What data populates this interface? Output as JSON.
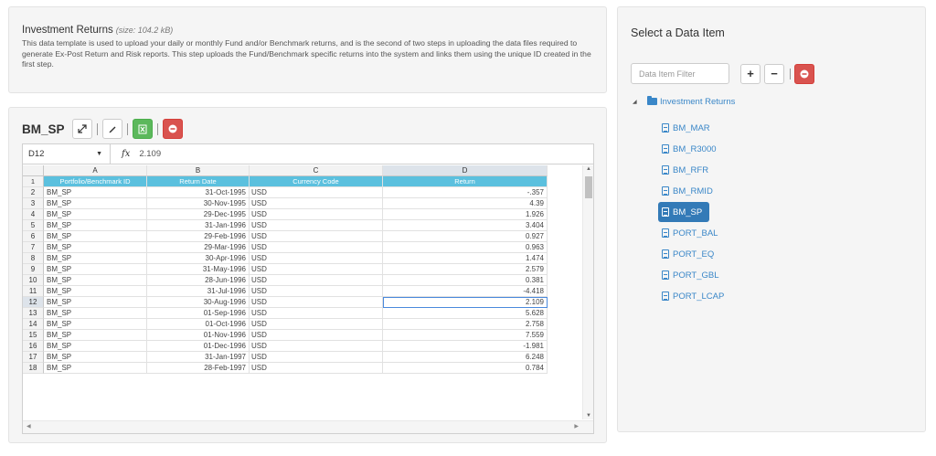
{
  "info": {
    "title": "Investment Returns",
    "size": "(size: 104.2 kB)",
    "description": "This data template is used to upload your daily or monthly Fund and/or Benchmark returns, and is the second of two steps in uploading the data files required to generate Ex-Post Return and Risk reports. This step uploads the Fund/Benchmark specific returns into the system and links them using the unique ID created in the first step."
  },
  "grid_panel": {
    "title": "BM_SP",
    "toolbar_icons": [
      "expand-icon",
      "edit-icon",
      "excel-icon",
      "remove-icon"
    ],
    "cell_ref": "D12",
    "fx_label": "fx",
    "formula_value": "2.109",
    "column_letters": [
      "A",
      "B",
      "C",
      "D"
    ],
    "headers": [
      "Portfolio/Benchmark ID",
      "Return Date",
      "Currency Code",
      "Return"
    ],
    "rows": [
      {
        "n": "2",
        "id": "BM_SP",
        "date": "31-Oct-1995",
        "ccy": "USD",
        "ret": "-.357"
      },
      {
        "n": "3",
        "id": "BM_SP",
        "date": "30-Nov-1995",
        "ccy": "USD",
        "ret": "4.39"
      },
      {
        "n": "4",
        "id": "BM_SP",
        "date": "29-Dec-1995",
        "ccy": "USD",
        "ret": "1.926"
      },
      {
        "n": "5",
        "id": "BM_SP",
        "date": "31-Jan-1996",
        "ccy": "USD",
        "ret": "3.404"
      },
      {
        "n": "6",
        "id": "BM_SP",
        "date": "29-Feb-1996",
        "ccy": "USD",
        "ret": "0.927"
      },
      {
        "n": "7",
        "id": "BM_SP",
        "date": "29-Mar-1996",
        "ccy": "USD",
        "ret": "0.963"
      },
      {
        "n": "8",
        "id": "BM_SP",
        "date": "30-Apr-1996",
        "ccy": "USD",
        "ret": "1.474"
      },
      {
        "n": "9",
        "id": "BM_SP",
        "date": "31-May-1996",
        "ccy": "USD",
        "ret": "2.579"
      },
      {
        "n": "10",
        "id": "BM_SP",
        "date": "28-Jun-1996",
        "ccy": "USD",
        "ret": "0.381"
      },
      {
        "n": "11",
        "id": "BM_SP",
        "date": "31-Jul-1996",
        "ccy": "USD",
        "ret": "-4.418"
      },
      {
        "n": "12",
        "id": "BM_SP",
        "date": "30-Aug-1996",
        "ccy": "USD",
        "ret": "2.109"
      },
      {
        "n": "13",
        "id": "BM_SP",
        "date": "01-Sep-1996",
        "ccy": "USD",
        "ret": "5.628"
      },
      {
        "n": "14",
        "id": "BM_SP",
        "date": "01-Oct-1996",
        "ccy": "USD",
        "ret": "2.758"
      },
      {
        "n": "15",
        "id": "BM_SP",
        "date": "01-Nov-1996",
        "ccy": "USD",
        "ret": "7.559"
      },
      {
        "n": "16",
        "id": "BM_SP",
        "date": "01-Dec-1996",
        "ccy": "USD",
        "ret": "-1.981"
      },
      {
        "n": "17",
        "id": "BM_SP",
        "date": "31-Jan-1997",
        "ccy": "USD",
        "ret": "6.248"
      },
      {
        "n": "18",
        "id": "BM_SP",
        "date": "28-Feb-1997",
        "ccy": "USD",
        "ret": "0.784"
      }
    ],
    "selected_row": "12"
  },
  "select_panel": {
    "title": "Select a Data Item",
    "filter_placeholder": "Data Item Filter",
    "add_label": "+",
    "minus_label": "−",
    "tree_root": "Investment Returns",
    "items": [
      "BM_MAR",
      "BM_R3000",
      "BM_RFR",
      "BM_RMID",
      "BM_SP",
      "PORT_BAL",
      "PORT_EQ",
      "PORT_GBL",
      "PORT_LCAP"
    ],
    "selected_item": "BM_SP"
  },
  "colors": {
    "header_cyan": "#5bc0de",
    "accent_blue": "#337ab7",
    "link_blue": "#3a87c8",
    "green": "#5cb85c",
    "red": "#d9534f"
  }
}
